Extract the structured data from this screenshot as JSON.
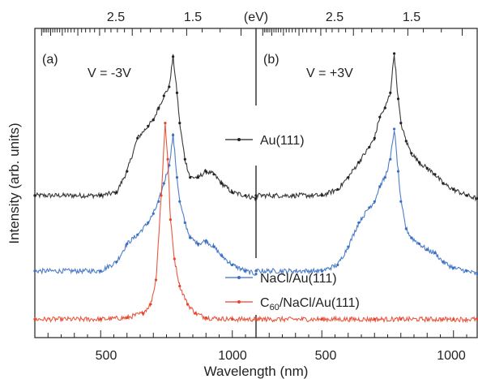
{
  "chart_data": [
    {
      "panel_label": "(a)",
      "type": "line",
      "voltage_label": "V = -3V",
      "xlim": [
        250,
        1090
      ],
      "x_ticks": [
        "500",
        "1000"
      ],
      "top_ticks": [
        "2.5",
        "1.5"
      ],
      "series": [
        {
          "name": "Au(111)",
          "color": "#222222",
          "x": [
            250,
            500,
            560,
            600,
            640,
            680,
            700,
            720,
            740,
            760,
            775,
            790,
            800,
            820,
            840,
            870,
            900,
            930,
            960,
            1000,
            1050,
            1090
          ],
          "y": [
            0.46,
            0.46,
            0.47,
            0.54,
            0.65,
            0.69,
            0.71,
            0.75,
            0.79,
            0.82,
            0.92,
            0.8,
            0.7,
            0.58,
            0.52,
            0.52,
            0.54,
            0.53,
            0.5,
            0.47,
            0.46,
            0.45
          ]
        },
        {
          "name": "NaCl/Au(111)",
          "color": "#3a6fc4",
          "x": [
            250,
            500,
            560,
            600,
            640,
            680,
            700,
            720,
            740,
            760,
            775,
            790,
            800,
            820,
            840,
            870,
            900,
            930,
            960,
            1000,
            1050,
            1090
          ],
          "y": [
            0.21,
            0.21,
            0.24,
            0.3,
            0.33,
            0.37,
            0.4,
            0.44,
            0.5,
            0.56,
            0.66,
            0.52,
            0.44,
            0.37,
            0.32,
            0.3,
            0.31,
            0.29,
            0.26,
            0.23,
            0.21,
            0.2
          ]
        },
        {
          "name": "C60/NaCl/Au(111)",
          "color": "#e8452a",
          "x": [
            250,
            500,
            600,
            660,
            690,
            710,
            730,
            745,
            755,
            765,
            780,
            800,
            830,
            860,
            900,
            1000,
            1090
          ],
          "y": [
            0.05,
            0.05,
            0.055,
            0.07,
            0.1,
            0.18,
            0.46,
            0.7,
            0.58,
            0.38,
            0.25,
            0.16,
            0.1,
            0.07,
            0.055,
            0.05,
            0.05
          ]
        }
      ]
    },
    {
      "panel_label": "(b)",
      "type": "line",
      "voltage_label": "V = +3V",
      "xlim": [
        250,
        1090
      ],
      "x_ticks": [
        "500",
        "1000"
      ],
      "top_ticks": [
        "2.5",
        "1.5"
      ],
      "series": [
        {
          "name": "Au(111)",
          "color": "#222222",
          "x": [
            250,
            500,
            560,
            600,
            640,
            680,
            700,
            720,
            740,
            760,
            775,
            790,
            800,
            820,
            840,
            870,
            900,
            930,
            960,
            1000,
            1050,
            1090
          ],
          "y": [
            0.46,
            0.46,
            0.48,
            0.52,
            0.57,
            0.62,
            0.65,
            0.72,
            0.75,
            0.8,
            0.93,
            0.78,
            0.7,
            0.64,
            0.6,
            0.57,
            0.55,
            0.53,
            0.5,
            0.48,
            0.46,
            0.45
          ]
        },
        {
          "name": "NaCl/Au(111)",
          "color": "#3a6fc4",
          "x": [
            250,
            500,
            560,
            600,
            640,
            680,
            700,
            720,
            740,
            760,
            775,
            790,
            800,
            820,
            840,
            870,
            900,
            930,
            960,
            1000,
            1050,
            1090
          ],
          "y": [
            0.21,
            0.21,
            0.23,
            0.29,
            0.37,
            0.42,
            0.44,
            0.49,
            0.52,
            0.58,
            0.68,
            0.54,
            0.44,
            0.35,
            0.32,
            0.3,
            0.28,
            0.27,
            0.24,
            0.22,
            0.21,
            0.2
          ]
        },
        {
          "name": "C60/NaCl/Au(111)",
          "color": "#e8452a",
          "x": [
            250,
            500,
            700,
            800,
            1000,
            1090
          ],
          "y": [
            0.05,
            0.05,
            0.05,
            0.05,
            0.05,
            0.05
          ]
        }
      ]
    }
  ],
  "labels": {
    "ylabel": "Intensity (arb. units)",
    "xlabel": "Wavelength (nm)",
    "top_axis_unit": "(eV)",
    "legend": {
      "au": "Au(111)",
      "nacl": "NaCl/Au(111)",
      "c60_main": "C",
      "c60_sub": "60",
      "c60_rest": "/NaCl/Au(111)"
    }
  }
}
